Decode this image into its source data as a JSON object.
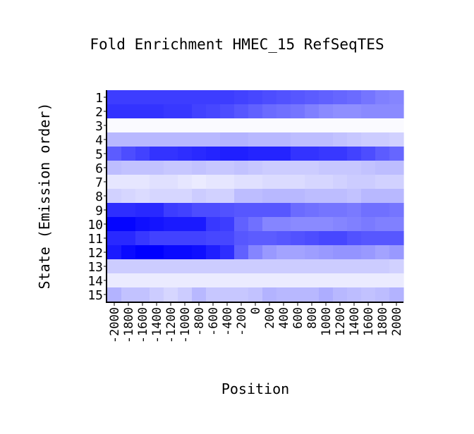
{
  "chart_data": {
    "type": "heatmap",
    "title": "Fold Enrichment HMEC_15 RefSeqTES",
    "xlabel": "Position",
    "ylabel": "State (Emission order)",
    "x_categories": [
      "-2000",
      "-1800",
      "-1600",
      "-1400",
      "-1200",
      "-1000",
      "-800",
      "-600",
      "-400",
      "-200",
      "0",
      "200",
      "400",
      "600",
      "800",
      "1000",
      "1200",
      "1400",
      "1600",
      "1800",
      "2000"
    ],
    "y_categories": [
      "1",
      "2",
      "3",
      "4",
      "5",
      "6",
      "7",
      "8",
      "9",
      "10",
      "11",
      "12",
      "13",
      "14",
      "15"
    ],
    "color_low": "#ffffff",
    "color_high": "#0000ff",
    "values": [
      [
        0.76,
        0.76,
        0.76,
        0.76,
        0.76,
        0.76,
        0.76,
        0.76,
        0.76,
        0.74,
        0.72,
        0.7,
        0.68,
        0.66,
        0.64,
        0.62,
        0.6,
        0.58,
        0.54,
        0.5,
        0.48
      ],
      [
        0.8,
        0.8,
        0.8,
        0.8,
        0.78,
        0.78,
        0.74,
        0.72,
        0.7,
        0.66,
        0.62,
        0.58,
        0.56,
        0.54,
        0.5,
        0.46,
        0.44,
        0.44,
        0.46,
        0.46,
        0.46
      ],
      [
        0.02,
        0.02,
        0.02,
        0.02,
        0.02,
        0.02,
        0.02,
        0.02,
        0.02,
        0.02,
        0.02,
        0.02,
        0.02,
        0.02,
        0.02,
        0.02,
        0.02,
        0.02,
        0.02,
        0.02,
        0.02
      ],
      [
        0.28,
        0.28,
        0.28,
        0.28,
        0.28,
        0.28,
        0.28,
        0.28,
        0.3,
        0.3,
        0.28,
        0.28,
        0.28,
        0.26,
        0.26,
        0.26,
        0.24,
        0.22,
        0.2,
        0.2,
        0.18
      ],
      [
        0.64,
        0.7,
        0.74,
        0.8,
        0.8,
        0.82,
        0.84,
        0.86,
        0.88,
        0.88,
        0.86,
        0.86,
        0.86,
        0.8,
        0.8,
        0.78,
        0.78,
        0.74,
        0.7,
        0.64,
        0.6
      ],
      [
        0.26,
        0.24,
        0.24,
        0.24,
        0.22,
        0.22,
        0.24,
        0.22,
        0.22,
        0.24,
        0.22,
        0.2,
        0.2,
        0.2,
        0.2,
        0.22,
        0.22,
        0.22,
        0.24,
        0.26,
        0.26
      ],
      [
        0.1,
        0.1,
        0.1,
        0.12,
        0.12,
        0.1,
        0.08,
        0.1,
        0.1,
        0.12,
        0.12,
        0.14,
        0.14,
        0.14,
        0.16,
        0.16,
        0.18,
        0.2,
        0.2,
        0.18,
        0.18
      ],
      [
        0.18,
        0.16,
        0.14,
        0.16,
        0.16,
        0.16,
        0.2,
        0.18,
        0.18,
        0.26,
        0.26,
        0.28,
        0.28,
        0.28,
        0.26,
        0.26,
        0.26,
        0.24,
        0.28,
        0.28,
        0.28
      ],
      [
        0.82,
        0.82,
        0.84,
        0.84,
        0.76,
        0.74,
        0.7,
        0.7,
        0.68,
        0.66,
        0.66,
        0.66,
        0.66,
        0.58,
        0.56,
        0.54,
        0.54,
        0.52,
        0.56,
        0.56,
        0.54
      ],
      [
        0.98,
        0.98,
        0.94,
        0.92,
        0.9,
        0.9,
        0.9,
        0.78,
        0.76,
        0.62,
        0.56,
        0.48,
        0.48,
        0.46,
        0.46,
        0.46,
        0.48,
        0.5,
        0.52,
        0.5,
        0.5
      ],
      [
        0.84,
        0.84,
        0.78,
        0.74,
        0.74,
        0.74,
        0.74,
        0.72,
        0.72,
        0.66,
        0.64,
        0.64,
        0.66,
        0.68,
        0.7,
        0.72,
        0.72,
        0.68,
        0.66,
        0.66,
        0.66
      ],
      [
        0.9,
        0.96,
        1.0,
        1.0,
        0.96,
        0.96,
        0.94,
        0.88,
        0.82,
        0.62,
        0.48,
        0.4,
        0.36,
        0.36,
        0.38,
        0.4,
        0.42,
        0.42,
        0.4,
        0.36,
        0.4
      ],
      [
        0.2,
        0.2,
        0.2,
        0.2,
        0.2,
        0.2,
        0.2,
        0.2,
        0.2,
        0.2,
        0.2,
        0.2,
        0.2,
        0.2,
        0.2,
        0.2,
        0.2,
        0.2,
        0.2,
        0.2,
        0.18
      ],
      [
        0.08,
        0.08,
        0.08,
        0.08,
        0.08,
        0.08,
        0.08,
        0.08,
        0.08,
        0.08,
        0.08,
        0.08,
        0.08,
        0.08,
        0.08,
        0.08,
        0.08,
        0.08,
        0.08,
        0.08,
        0.08
      ],
      [
        0.3,
        0.24,
        0.24,
        0.2,
        0.16,
        0.2,
        0.28,
        0.22,
        0.22,
        0.22,
        0.24,
        0.3,
        0.28,
        0.28,
        0.28,
        0.32,
        0.28,
        0.26,
        0.24,
        0.26,
        0.3
      ]
    ]
  }
}
